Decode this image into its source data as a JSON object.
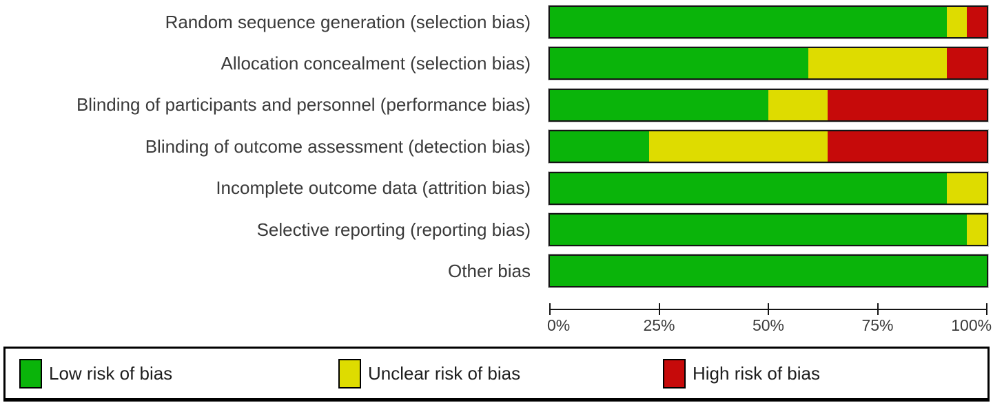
{
  "figure": {
    "kind": "risk-of-bias-graph",
    "background_color": "#ffffff",
    "text_color": "#3a3a3a",
    "bar_border_color": "#141414"
  },
  "chart_data": {
    "type": "bar",
    "orientation": "horizontal-stacked",
    "title": "",
    "xlabel": "",
    "ylabel": "",
    "xlim": [
      0,
      100
    ],
    "grid": false,
    "legend_position": "bottom",
    "categories": [
      "Random sequence generation (selection bias)",
      "Allocation concealment (selection bias)",
      "Blinding of participants and personnel (performance bias)",
      "Blinding of outcome assessment (detection bias)",
      "Incomplete outcome data (attrition bias)",
      "Selective reporting (reporting bias)",
      "Other bias"
    ],
    "series": [
      {
        "name": "Low risk of bias",
        "color": "#0ab40a",
        "values": [
          90.91,
          59.09,
          50.0,
          22.73,
          90.91,
          95.45,
          100.0
        ]
      },
      {
        "name": "Unclear risk of bias",
        "color": "#dedc00",
        "values": [
          4.55,
          31.82,
          13.64,
          40.91,
          9.09,
          4.55,
          0.0
        ]
      },
      {
        "name": "High risk of bias",
        "color": "#c60a0a",
        "values": [
          4.55,
          9.09,
          36.36,
          36.36,
          0.0,
          0.0,
          0.0
        ]
      }
    ],
    "x_axis_ticks": [
      {
        "value": 0,
        "label": "0%"
      },
      {
        "value": 25,
        "label": "25%"
      },
      {
        "value": 50,
        "label": "50%"
      },
      {
        "value": 75,
        "label": "75%"
      },
      {
        "value": 100,
        "label": "100%"
      }
    ],
    "legend": [
      {
        "label": "Low risk of bias",
        "color": "#0ab40a"
      },
      {
        "label": "Unclear risk of bias",
        "color": "#dedc00"
      },
      {
        "label": "High risk of bias",
        "color": "#c60a0a"
      }
    ]
  }
}
